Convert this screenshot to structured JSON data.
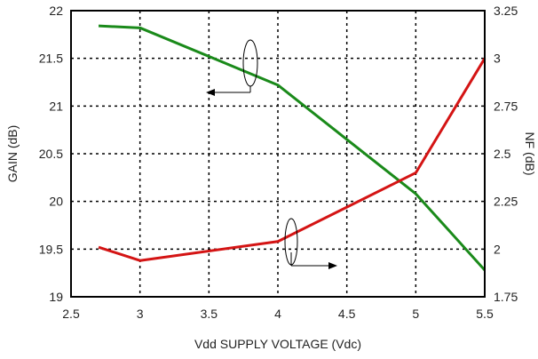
{
  "chart_data": {
    "type": "line",
    "xlabel": "Vdd SUPPLY VOLTAGE (Vdc)",
    "ylabel_left": "GAIN (dB)",
    "ylabel_right": "NF (dB)",
    "xlim": [
      2.5,
      5.5
    ],
    "ylim_left": [
      19,
      22
    ],
    "ylim_right": [
      1.75,
      3.25
    ],
    "x_ticks": [
      "2.5",
      "3",
      "3.5",
      "4",
      "4.5",
      "5",
      "5.5"
    ],
    "y_left_ticks": [
      "19",
      "19.5",
      "20",
      "20.5",
      "21",
      "21.5",
      "22"
    ],
    "y_right_ticks": [
      "1.75",
      "2",
      "2.25",
      "2.5",
      "2.75",
      "3",
      "3.25"
    ],
    "grid": true,
    "series": [
      {
        "axis": "left",
        "color": "#1a8a1a",
        "points": [
          [
            2.7,
            21.84
          ],
          [
            3.0,
            21.82
          ],
          [
            4.0,
            21.22
          ],
          [
            5.0,
            20.08
          ],
          [
            5.5,
            19.28
          ]
        ]
      },
      {
        "axis": "right",
        "color": "#d41414",
        "points": [
          [
            2.7,
            2.01
          ],
          [
            3.0,
            1.94
          ],
          [
            4.0,
            2.04
          ],
          [
            5.0,
            2.4
          ],
          [
            5.5,
            3.0
          ]
        ]
      }
    ]
  }
}
